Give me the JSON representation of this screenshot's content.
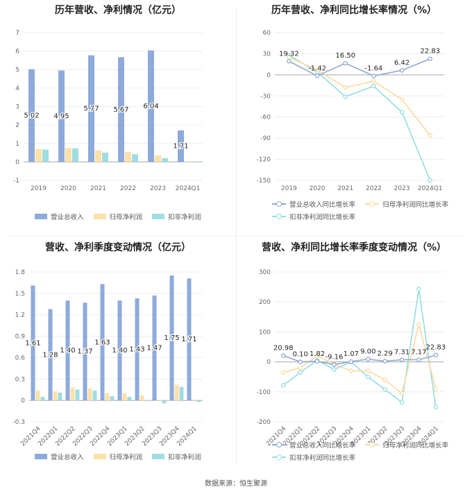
{
  "colors": {
    "revenue": "#8eaadb",
    "profit": "#fce0a8",
    "deducted": "#9fdde2",
    "rev_line": "#8ea7d6",
    "profit_line": "#f8d9a0",
    "deducted_line": "#93dce3"
  },
  "footer": "数据来源：恒生聚源",
  "legend_bar": [
    "营业总收入",
    "归母净利润",
    "扣非净利润"
  ],
  "legend_line": [
    "营业总收入同比增长率",
    "归母净利润同比增长率",
    "扣非净利润同比增长率"
  ],
  "chart_data": [
    {
      "type": "bar",
      "title": "历年营收、净利情况（亿元）",
      "categories": [
        "2019",
        "2020",
        "2021",
        "2022",
        "2023",
        "2024Q1"
      ],
      "ylim": [
        -1,
        7
      ],
      "yticks": [
        -1,
        0,
        1,
        2,
        3,
        4,
        5,
        6,
        7
      ],
      "series": [
        {
          "name": "营业总收入",
          "values": [
            5.02,
            4.95,
            5.77,
            5.67,
            6.04,
            1.71
          ],
          "labels": [
            "5.02",
            "4.95",
            "5.77",
            "5.67",
            "6.04",
            "1.71"
          ]
        },
        {
          "name": "归母净利润",
          "values": [
            0.7,
            0.75,
            0.62,
            0.55,
            0.36,
            0.02
          ]
        },
        {
          "name": "扣非净利润",
          "values": [
            0.67,
            0.73,
            0.5,
            0.42,
            0.2,
            0.01
          ]
        }
      ]
    },
    {
      "type": "line",
      "title": "历年营收、净利同比增长率情况（%）",
      "categories": [
        "2019",
        "2020",
        "2021",
        "2022",
        "2023",
        "2024Q1"
      ],
      "ylim": [
        -150,
        60
      ],
      "yticks": [
        -150,
        -120,
        -90,
        -60,
        -30,
        0,
        30,
        60
      ],
      "series": [
        {
          "name": "营业总收入同比增长率",
          "values": [
            19.32,
            -1.42,
            16.5,
            -1.64,
            6.42,
            22.83
          ],
          "labels": [
            "19.32",
            "-1.42",
            "16.50",
            "-1.64",
            "6.42",
            "22.83"
          ]
        },
        {
          "name": "归母净利润同比增长率",
          "values": [
            25,
            7,
            -18,
            -9,
            -35,
            -86
          ]
        },
        {
          "name": "扣非净利润同比增长率",
          "values": [
            28,
            4,
            -31,
            -16,
            -53,
            -150
          ]
        }
      ]
    },
    {
      "type": "bar",
      "title": "营收、净利季度变动情况（亿元）",
      "categories": [
        "2021Q4",
        "2022Q1",
        "2022Q2",
        "2022Q3",
        "2022Q4",
        "2023Q1",
        "2023Q2",
        "2023Q3",
        "2023Q4",
        "2024Q1"
      ],
      "ylim": [
        -0.3,
        1.8
      ],
      "yticks": [
        -0.3,
        0,
        0.3,
        0.6,
        0.9,
        1.2,
        1.5,
        1.8
      ],
      "series": [
        {
          "name": "营业总收入",
          "values": [
            1.61,
            1.28,
            1.4,
            1.37,
            1.63,
            1.4,
            1.43,
            1.47,
            1.75,
            1.71
          ],
          "labels": [
            "1.61",
            "1.28",
            "1.40",
            "1.37",
            "1.63",
            "1.40",
            "1.43",
            "1.47",
            "1.75",
            "1.71"
          ]
        },
        {
          "name": "归母净利润",
          "values": [
            0.14,
            0.13,
            0.18,
            0.17,
            0.1,
            0.1,
            0.07,
            0.01,
            0.22,
            0.01
          ]
        },
        {
          "name": "扣非净利润",
          "values": [
            0.05,
            0.11,
            0.15,
            0.14,
            0.06,
            0.05,
            0.0,
            -0.04,
            0.19,
            -0.02
          ]
        }
      ]
    },
    {
      "type": "line",
      "title": "营收、净利同比增长率季度变动情况（%）",
      "categories": [
        "2021Q4",
        "2022Q1",
        "2022Q2",
        "2022Q3",
        "2022Q4",
        "2023Q1",
        "2023Q2",
        "2023Q3",
        "2023Q4",
        "2024Q1"
      ],
      "ylim": [
        -200,
        300
      ],
      "yticks": [
        -200,
        -100,
        0,
        100,
        200,
        300
      ],
      "series": [
        {
          "name": "营业总收入同比增长率",
          "values": [
            20.98,
            0.1,
            1.82,
            -9.16,
            1.07,
            9.0,
            2.29,
            7.31,
            7.17,
            22.83
          ],
          "labels": [
            "20.98",
            "0.10",
            "1.82",
            "-9.16",
            "1.07",
            "9.00",
            "2.29",
            "7.31",
            "7.17",
            "22.83"
          ]
        },
        {
          "name": "归母净利润同比增长率",
          "values": [
            -35,
            -20,
            20,
            -8,
            -30,
            -30,
            -60,
            -105,
            125,
            -90
          ]
        },
        {
          "name": "扣非净利润同比增长率",
          "values": [
            -78,
            -35,
            5,
            -25,
            0,
            -50,
            -92,
            -135,
            243,
            -150
          ]
        }
      ]
    }
  ]
}
